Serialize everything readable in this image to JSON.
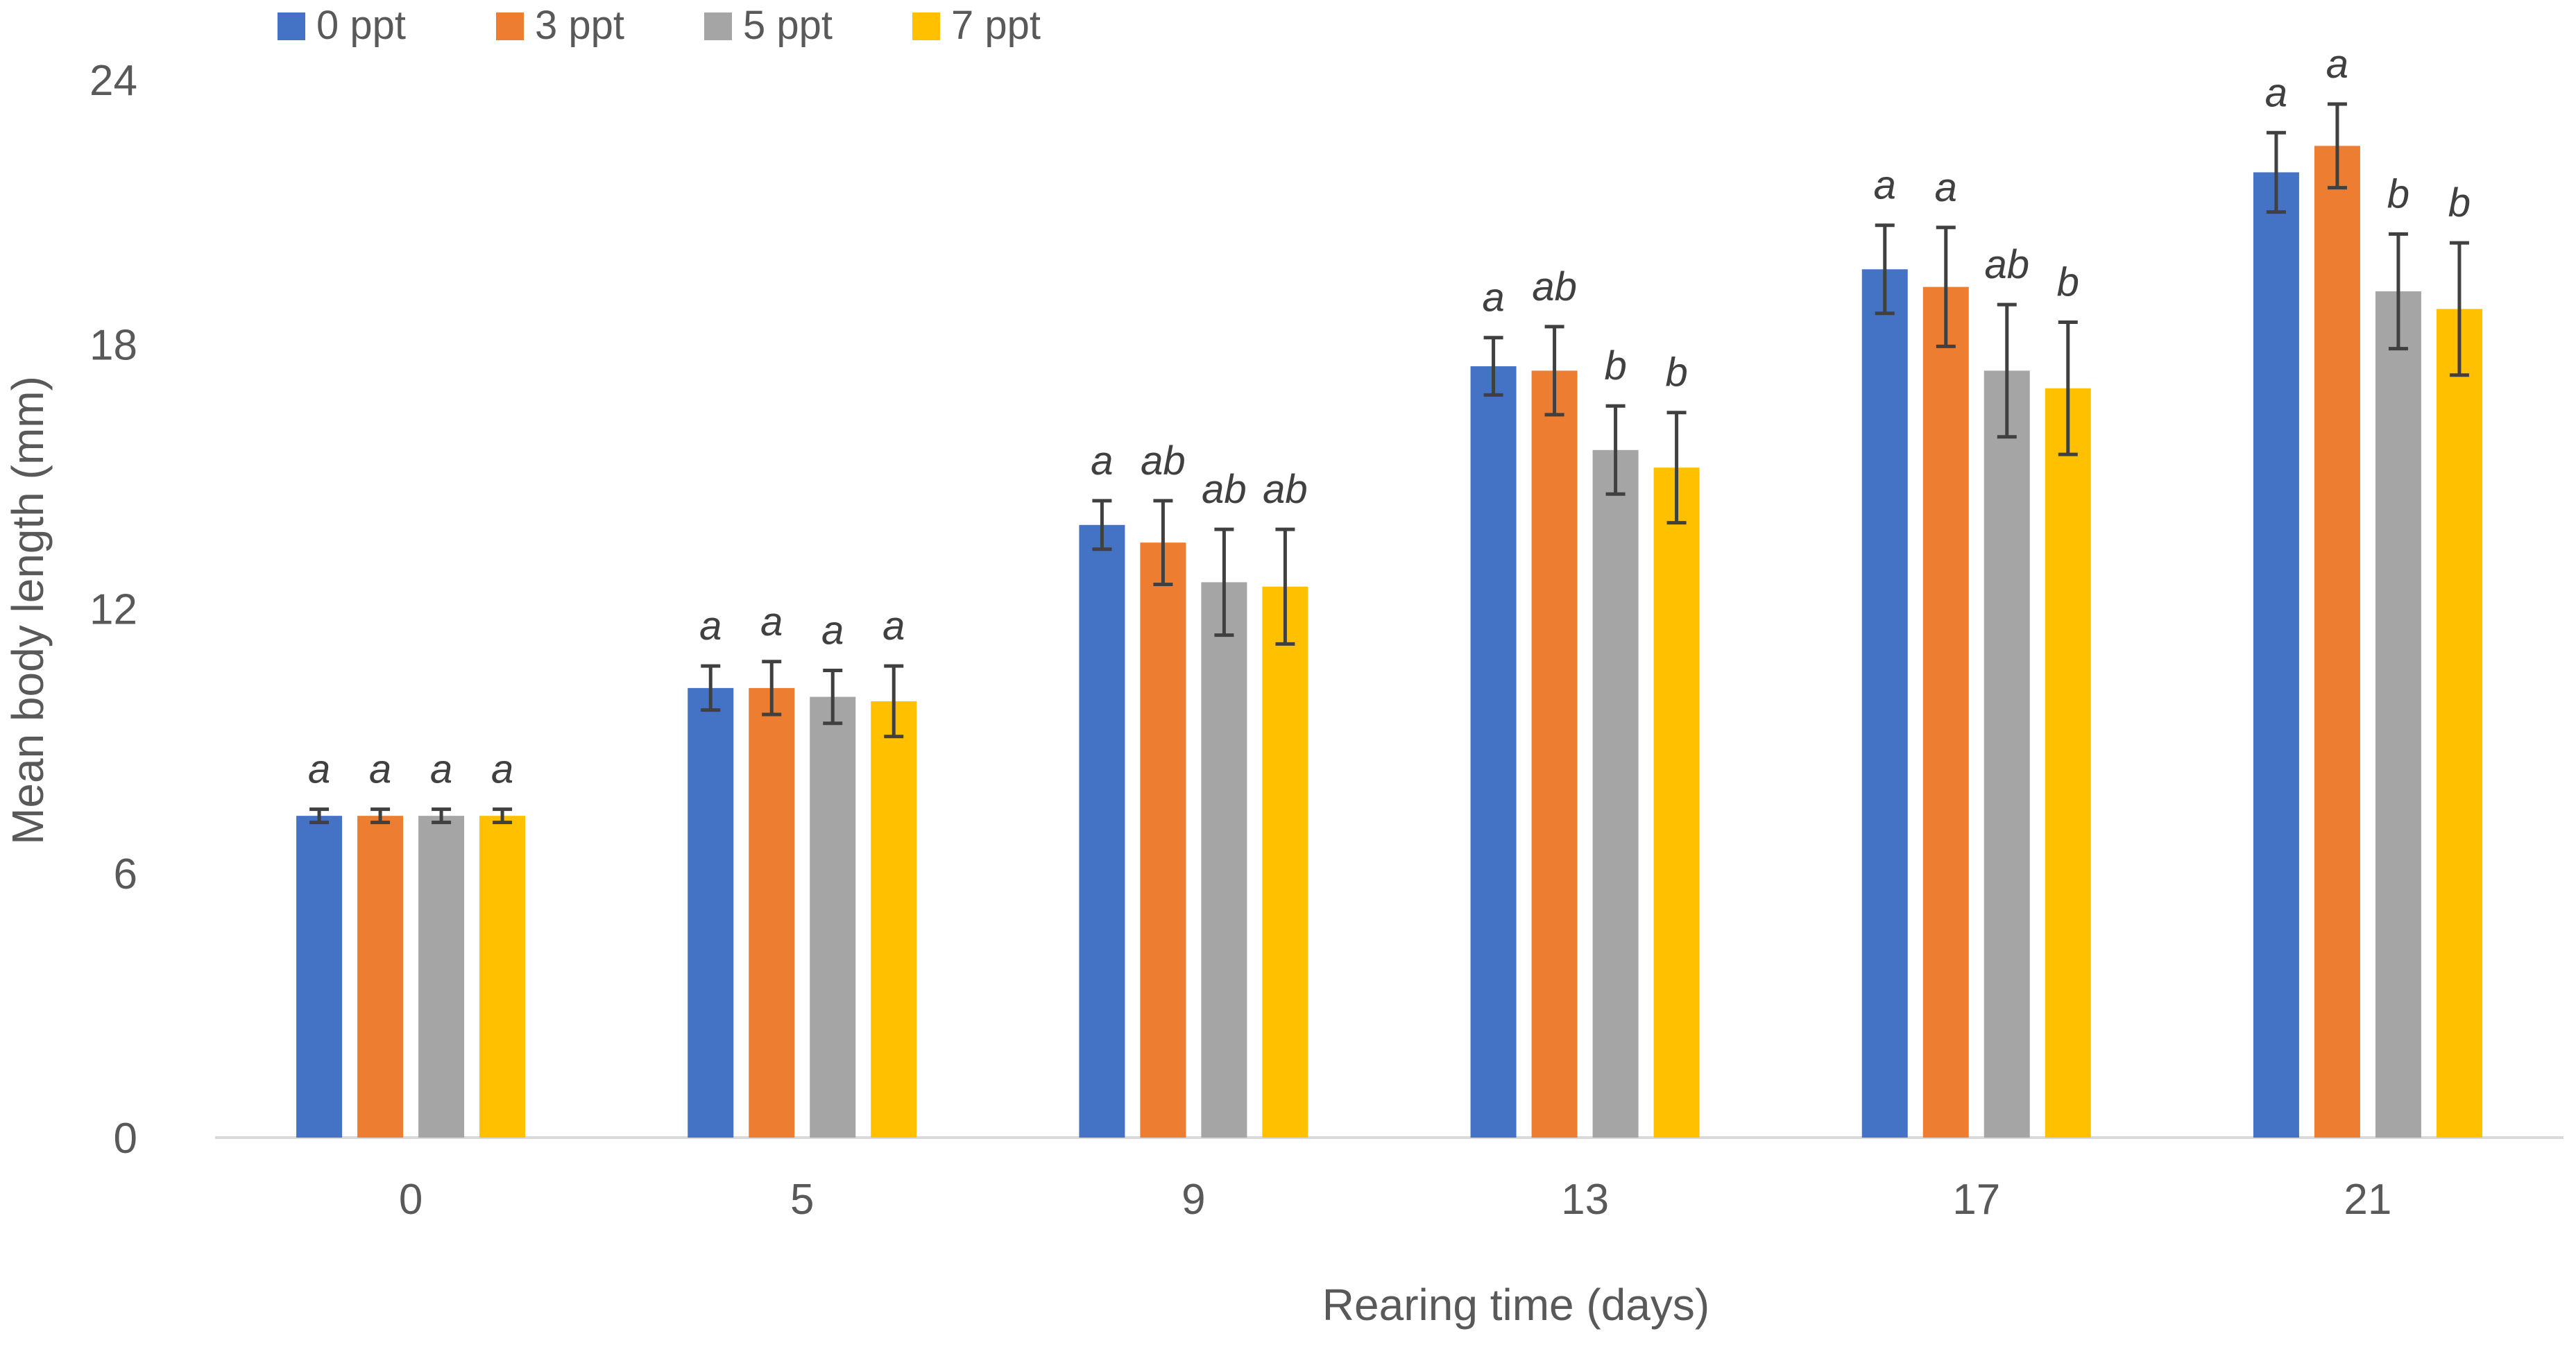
{
  "chart_data": {
    "type": "bar",
    "title": "",
    "xlabel": "Rearing time (days)",
    "ylabel": "Mean body length (mm)",
    "ylim": [
      0,
      24
    ],
    "yticks": [
      "0",
      "6",
      "12",
      "18",
      "24"
    ],
    "categories": [
      "0",
      "5",
      "9",
      "13",
      "17",
      "21"
    ],
    "legend_position": "top-left",
    "series": [
      {
        "name": "0 ppt",
        "color": "#4472C4",
        "values": [
          7.3,
          10.2,
          13.9,
          17.5,
          19.7,
          21.9
        ],
        "errors": [
          0.15,
          0.5,
          0.55,
          0.65,
          1.0,
          0.9
        ],
        "sig": [
          "a",
          "a",
          "a",
          "a",
          "a",
          "a"
        ]
      },
      {
        "name": "3 ppt",
        "color": "#ED7D31",
        "values": [
          7.3,
          10.2,
          13.5,
          17.4,
          19.3,
          22.5
        ],
        "errors": [
          0.15,
          0.6,
          0.95,
          1.0,
          1.35,
          0.95
        ],
        "sig": [
          "a",
          "a",
          "ab",
          "ab",
          "a",
          "a"
        ]
      },
      {
        "name": "5 ppt",
        "color": "#A5A5A5",
        "values": [
          7.3,
          10.0,
          12.6,
          15.6,
          17.4,
          19.2
        ],
        "errors": [
          0.15,
          0.6,
          1.2,
          1.0,
          1.5,
          1.3
        ],
        "sig": [
          "a",
          "a",
          "ab",
          "b",
          "ab",
          "b"
        ]
      },
      {
        "name": "7 ppt",
        "color": "#FFC000",
        "values": [
          7.3,
          9.9,
          12.5,
          15.2,
          17.0,
          18.8
        ],
        "errors": [
          0.15,
          0.8,
          1.3,
          1.25,
          1.5,
          1.5
        ],
        "sig": [
          "a",
          "a",
          "ab",
          "b",
          "b",
          "b"
        ]
      }
    ],
    "errorbar_color": "#404040",
    "axis_color": "#D9D9D9"
  }
}
